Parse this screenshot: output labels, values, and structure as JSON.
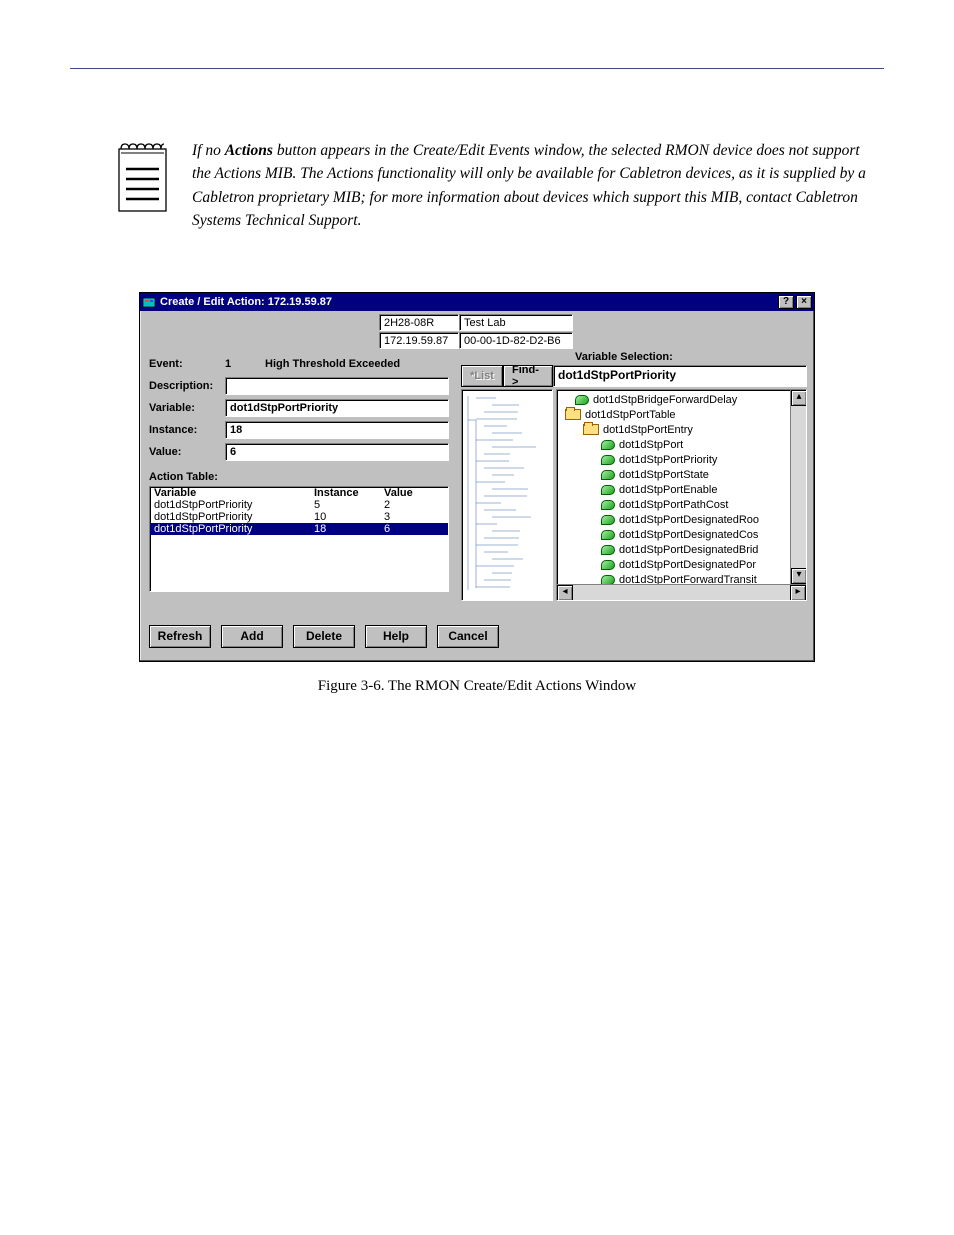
{
  "note": {
    "text_prefix": "If no ",
    "bold": "Actions",
    "text_suffix": " button appears in the Create/Edit Events window, the selected RMON device does not support the Actions MIB. The Actions functionality will only be available for Cabletron devices, as it is supplied by a Cabletron proprietary MIB; for more information about devices which support this MIB, contact Cabletron Systems Technical Support."
  },
  "dialog": {
    "title": "Create / Edit Action: 172.19.59.87",
    "device_model": "2H28-08R",
    "device_ip": "172.19.59.87",
    "device_lab": "Test Lab",
    "device_mac": "00-00-1D-82-D2-B6",
    "labels": {
      "event": "Event:",
      "description": "Description:",
      "variable": "Variable:",
      "instance": "Instance:",
      "value": "Value:",
      "action_table": "Action Table:",
      "variable_selection": "Variable Selection:",
      "list_btn": "*List",
      "find_btn": "Find->"
    },
    "event_num": "1",
    "event_desc": "High Threshold Exceeded",
    "variable_value": "dot1dStpPortPriority",
    "instance_value": "18",
    "value_value": "6",
    "action_table": {
      "headers": [
        "Variable",
        "Instance",
        "Value"
      ],
      "rows": [
        {
          "variable": "dot1dStpPortPriority",
          "instance": "5",
          "value": "2",
          "selected": false
        },
        {
          "variable": "dot1dStpPortPriority",
          "instance": "10",
          "value": "3",
          "selected": false
        },
        {
          "variable": "dot1dStpPortPriority",
          "instance": "18",
          "value": "6",
          "selected": true
        }
      ]
    },
    "find_result": "dot1dStpPortPriority",
    "tree": [
      {
        "type": "leaf",
        "indent": 18,
        "label": "dot1dStpBridgeForwardDelay"
      },
      {
        "type": "folder",
        "indent": 8,
        "label": "dot1dStpPortTable"
      },
      {
        "type": "folder",
        "indent": 26,
        "label": "dot1dStpPortEntry"
      },
      {
        "type": "leaf",
        "indent": 44,
        "label": "dot1dStpPort"
      },
      {
        "type": "leaf",
        "indent": 44,
        "label": "dot1dStpPortPriority"
      },
      {
        "type": "leaf",
        "indent": 44,
        "label": "dot1dStpPortState"
      },
      {
        "type": "leaf",
        "indent": 44,
        "label": "dot1dStpPortEnable"
      },
      {
        "type": "leaf",
        "indent": 44,
        "label": "dot1dStpPortPathCost"
      },
      {
        "type": "leaf",
        "indent": 44,
        "label": "dot1dStpPortDesignatedRoo"
      },
      {
        "type": "leaf",
        "indent": 44,
        "label": "dot1dStpPortDesignatedCos"
      },
      {
        "type": "leaf",
        "indent": 44,
        "label": "dot1dStpPortDesignatedBrid"
      },
      {
        "type": "leaf",
        "indent": 44,
        "label": "dot1dStpPortDesignatedPor"
      },
      {
        "type": "leaf",
        "indent": 44,
        "label": "dot1dStpPortForwardTransit"
      }
    ],
    "buttons": [
      "Refresh",
      "Add",
      "Delete",
      "Help",
      "Cancel"
    ]
  },
  "caption": "Figure 3-6.  The RMON Create/Edit Actions Window"
}
